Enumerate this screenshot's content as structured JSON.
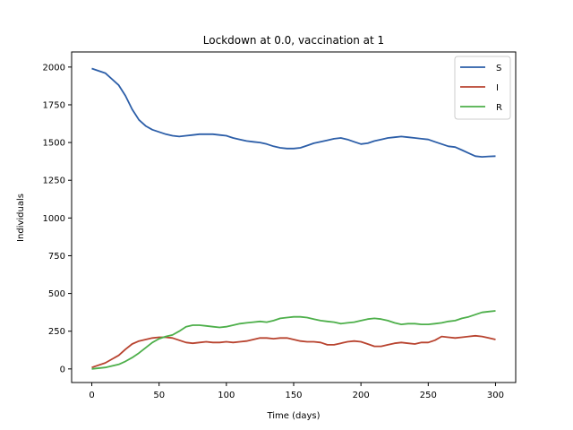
{
  "chart_data": {
    "type": "line",
    "title": "Lockdown at 0.0, vaccination at 1",
    "xlabel": "Time (days)",
    "ylabel": "Individuals",
    "xlim": [
      -15,
      315
    ],
    "ylim": [
      -90,
      2100
    ],
    "xticks": [
      0,
      50,
      100,
      150,
      200,
      250,
      300
    ],
    "yticks": [
      0,
      250,
      500,
      750,
      1000,
      1250,
      1500,
      1750,
      2000
    ],
    "legend_position": "top-right",
    "x": [
      0,
      10,
      20,
      25,
      30,
      35,
      40,
      45,
      50,
      55,
      60,
      65,
      70,
      75,
      80,
      85,
      90,
      95,
      100,
      105,
      110,
      115,
      120,
      125,
      130,
      135,
      140,
      145,
      150,
      155,
      160,
      165,
      170,
      175,
      180,
      185,
      190,
      195,
      200,
      205,
      210,
      215,
      220,
      225,
      230,
      235,
      240,
      245,
      250,
      255,
      260,
      265,
      270,
      275,
      280,
      285,
      290,
      295,
      300
    ],
    "series": [
      {
        "name": "S",
        "color": "#2c5ea8",
        "values": [
          1990,
          1960,
          1880,
          1810,
          1720,
          1650,
          1610,
          1585,
          1570,
          1555,
          1545,
          1540,
          1545,
          1550,
          1555,
          1555,
          1555,
          1550,
          1545,
          1530,
          1520,
          1510,
          1505,
          1500,
          1490,
          1475,
          1465,
          1460,
          1460,
          1465,
          1480,
          1495,
          1505,
          1515,
          1525,
          1530,
          1520,
          1505,
          1490,
          1495,
          1510,
          1520,
          1530,
          1535,
          1540,
          1535,
          1530,
          1525,
          1520,
          1505,
          1490,
          1475,
          1470,
          1450,
          1430,
          1410,
          1405,
          1408,
          1410
        ]
      },
      {
        "name": "I",
        "color": "#b8432f",
        "values": [
          10,
          40,
          90,
          130,
          165,
          185,
          195,
          205,
          210,
          210,
          205,
          190,
          175,
          170,
          175,
          180,
          175,
          175,
          180,
          175,
          180,
          185,
          195,
          205,
          205,
          200,
          205,
          205,
          195,
          185,
          180,
          180,
          175,
          160,
          160,
          170,
          180,
          185,
          180,
          165,
          150,
          150,
          160,
          170,
          175,
          170,
          165,
          175,
          175,
          190,
          215,
          210,
          205,
          210,
          215,
          220,
          215,
          205,
          195
        ]
      },
      {
        "name": "R",
        "color": "#4daf4a",
        "values": [
          0,
          10,
          30,
          50,
          75,
          105,
          140,
          175,
          200,
          215,
          225,
          250,
          280,
          290,
          290,
          285,
          280,
          275,
          280,
          290,
          300,
          305,
          310,
          315,
          310,
          320,
          335,
          340,
          345,
          345,
          340,
          330,
          320,
          315,
          310,
          300,
          305,
          310,
          320,
          330,
          335,
          330,
          320,
          305,
          295,
          300,
          300,
          295,
          295,
          300,
          305,
          315,
          320,
          335,
          345,
          360,
          375,
          380,
          385
        ]
      }
    ]
  }
}
